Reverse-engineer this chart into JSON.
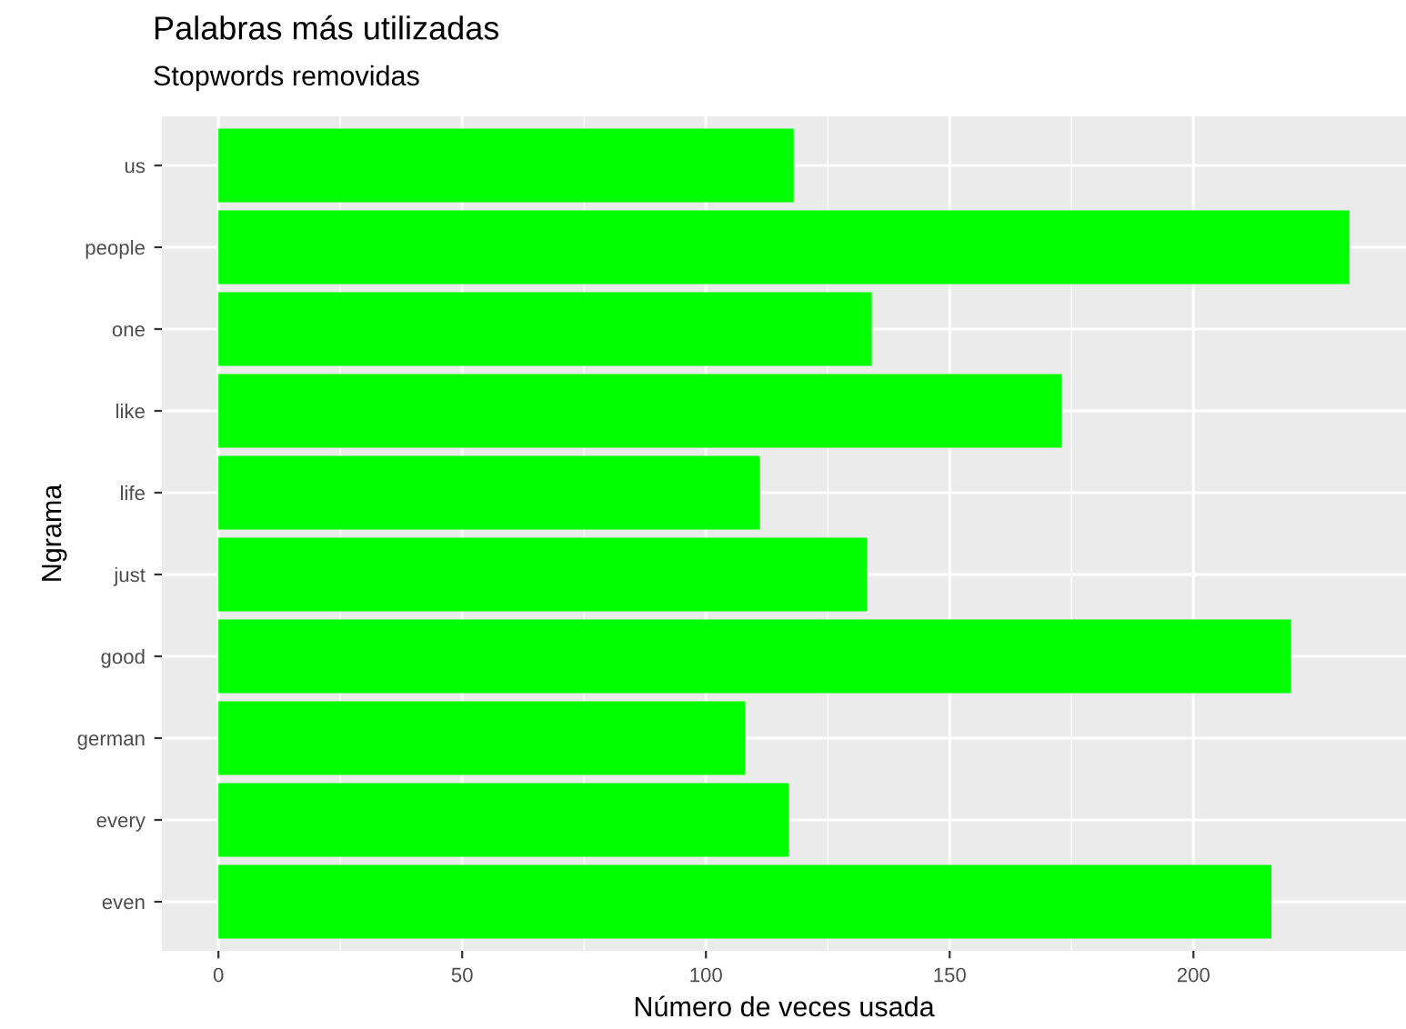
{
  "chart_data": {
    "type": "bar",
    "orientation": "horizontal",
    "title": "Palabras más utilizadas",
    "subtitle": "Stopwords removidas",
    "xlabel": "Número de veces usada",
    "ylabel": "Ngrama",
    "categories": [
      "us",
      "people",
      "one",
      "like",
      "life",
      "just",
      "good",
      "german",
      "every",
      "even"
    ],
    "values": [
      118,
      232,
      134,
      173,
      111,
      133,
      220,
      108,
      117,
      216
    ],
    "color": "#00ff00",
    "xlim": [
      -11.6,
      243.6
    ],
    "xticks": [
      0,
      50,
      100,
      150,
      200
    ],
    "grid": true
  }
}
